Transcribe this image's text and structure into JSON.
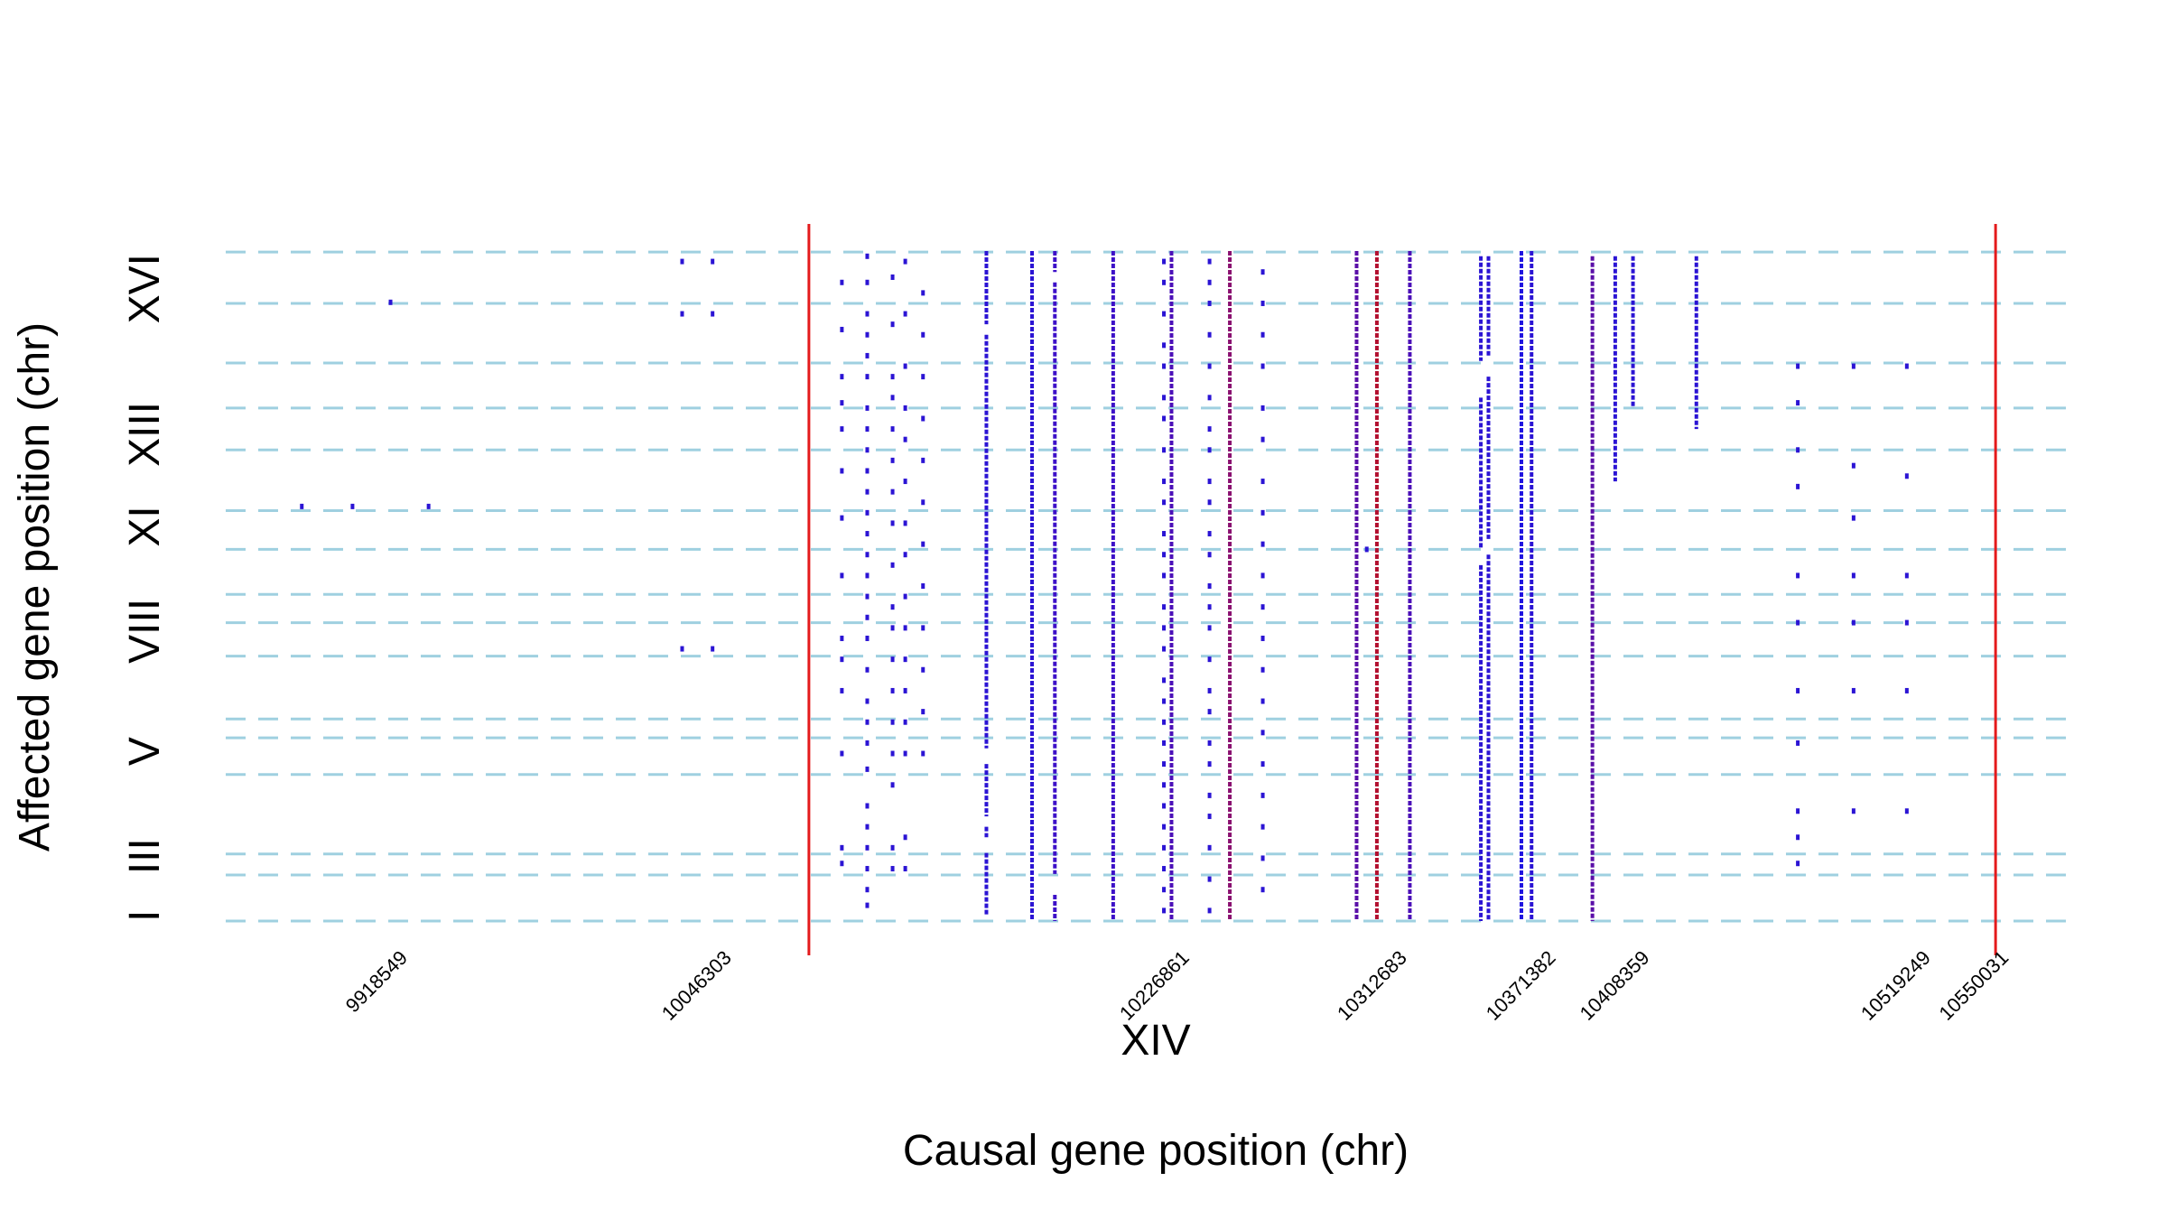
{
  "chart_data": {
    "type": "scatter",
    "xlabel": "Causal gene position (chr)",
    "ylabel": "Affected gene position (chr)",
    "x_chromosome_label": "XIV",
    "xlim": [
      9850000,
      10580000
    ],
    "x_ticks": [
      "9918549",
      "10046303",
      "10226861",
      "10312683",
      "10371382",
      "10408359",
      "10519249",
      "10550031"
    ],
    "y_chromosome_labels": [
      {
        "label": "I",
        "row": 0.5
      },
      {
        "label": "III",
        "row": 6.2
      },
      {
        "label": "V",
        "row": 16.2
      },
      {
        "label": "VIII",
        "row": 27.7
      },
      {
        "label": "XI",
        "row": 37.7
      },
      {
        "label": "XIII",
        "row": 46.5
      },
      {
        "label": "XVI",
        "row": 60.4
      }
    ],
    "y_row_range": [
      0,
      64
    ],
    "chromosome_boundaries": [
      0,
      4.4,
      6.4,
      14,
      17.5,
      19.3,
      25.3,
      28.5,
      31.2,
      35.5,
      39.2,
      45,
      49,
      53.3,
      59,
      63.9
    ],
    "red_vertical_lines": [
      10080000,
      10548000
    ],
    "columns": [
      {
        "x": 10030000,
        "rows": [
          63,
          58,
          26
        ]
      },
      {
        "x": 10042000,
        "rows": [
          63,
          58,
          26
        ]
      },
      {
        "x": 9880000,
        "rows": [
          39.6
        ]
      },
      {
        "x": 9900000,
        "rows": [
          39.6
        ]
      },
      {
        "x": 9915000,
        "rows": [
          59.1
        ]
      },
      {
        "x": 9930000,
        "rows": [
          39.6
        ]
      },
      {
        "x": 10093000,
        "rows": [
          61,
          56.5,
          52,
          49.5,
          47,
          43,
          38.5,
          33,
          27,
          25,
          22,
          16,
          7,
          5.5
        ]
      },
      {
        "x": 10103000,
        "rows": [
          63.5,
          61,
          58,
          56,
          54,
          52,
          49,
          47,
          45,
          43,
          41,
          39,
          37,
          35,
          33,
          31,
          29,
          27,
          24,
          21,
          19,
          17,
          14.5,
          11,
          9,
          7,
          5,
          3,
          1.5
        ]
      },
      {
        "x": 10113000,
        "rows": [
          61.5,
          57,
          52,
          50,
          47,
          44,
          41,
          38,
          34,
          30,
          28,
          25,
          22,
          19,
          16,
          13,
          7,
          5
        ]
      },
      {
        "x": 10118000,
        "rows": [
          63,
          58,
          53,
          49,
          46,
          42,
          38,
          35,
          31,
          28,
          25,
          22,
          19,
          16,
          8,
          5
        ]
      },
      {
        "x": 10125000,
        "rows": [
          60,
          56,
          52,
          48,
          44,
          40,
          36,
          32,
          28,
          24,
          20,
          16
        ]
      },
      {
        "x": 10300000,
        "rows": [
          35.5
        ]
      },
      {
        "x": 10470000,
        "rows": [
          53,
          49.5,
          45,
          41.5,
          33,
          28.5,
          22,
          17,
          10.5,
          8,
          5.5
        ]
      },
      {
        "x": 10492000,
        "rows": [
          53,
          43.5,
          38.5,
          33,
          28.5,
          22,
          10.5
        ]
      },
      {
        "x": 10513000,
        "rows": [
          53,
          42.5,
          33,
          28.5,
          22,
          10.5
        ]
      },
      {
        "x": 10220000,
        "rows": [
          63,
          61,
          58,
          55,
          53,
          50,
          48,
          45,
          42,
          40,
          37,
          35,
          33,
          30,
          28,
          26,
          23,
          21,
          19,
          17,
          15,
          13,
          11,
          9,
          7,
          5,
          3,
          1
        ]
      },
      {
        "x": 10238000,
        "rows": [
          63,
          61,
          59,
          56,
          53,
          50,
          47,
          45,
          42,
          40,
          37,
          35,
          32,
          30,
          28,
          25,
          22,
          20,
          17,
          15,
          12,
          10,
          7,
          4,
          1
        ]
      },
      {
        "x": 10259000,
        "rows": [
          62,
          59,
          56,
          53,
          49,
          46,
          42,
          39,
          36,
          33,
          30,
          27,
          24,
          21,
          18,
          15,
          12,
          9,
          6,
          3
        ]
      }
    ],
    "dense_columns": [
      {
        "x": 10150000,
        "row_start": 0.6,
        "row_end": 64,
        "color": "#2b14d4",
        "gaps": [
          [
            6.5,
            8
          ],
          [
            9,
            10
          ],
          [
            15,
            16.5
          ],
          [
            56,
            57
          ]
        ]
      },
      {
        "x": 10168000,
        "row_start": 0,
        "row_end": 64,
        "color": "#2b14d4",
        "gaps": []
      },
      {
        "x": 10177000,
        "row_start": 0,
        "row_end": 64,
        "color": "#3d10c8",
        "gaps": [
          [
            2.5,
            4.5
          ],
          [
            61,
            62
          ]
        ]
      },
      {
        "x": 10200000,
        "row_start": 0,
        "row_end": 64,
        "color": "#3d10c8",
        "gaps": []
      },
      {
        "x": 10223000,
        "row_start": 0,
        "row_end": 64,
        "color": "#4b0fb8",
        "gaps": []
      },
      {
        "x": 10246000,
        "row_start": 0,
        "row_end": 64,
        "color": "#8a1070",
        "gaps": []
      },
      {
        "x": 10296000,
        "row_start": 0,
        "row_end": 64,
        "color": "#5a0fa8",
        "gaps": []
      },
      {
        "x": 10304000,
        "row_start": 0,
        "row_end": 64,
        "color": "#b3102f",
        "gaps": []
      },
      {
        "x": 10317000,
        "row_start": 0,
        "row_end": 64,
        "color": "#4b0fb8",
        "gaps": []
      },
      {
        "x": 10345000,
        "row_start": 0,
        "row_end": 63.5,
        "color": "#2b14d4",
        "gaps": [
          [
            34,
            35.5
          ],
          [
            50,
            53.5
          ]
        ]
      },
      {
        "x": 10348000,
        "row_start": 0,
        "row_end": 63.5,
        "color": "#2b14d4",
        "gaps": [
          [
            35,
            36.5
          ],
          [
            52,
            54
          ]
        ]
      },
      {
        "x": 10361000,
        "row_start": 0,
        "row_end": 64,
        "color": "#2014e0",
        "gaps": []
      },
      {
        "x": 10365000,
        "row_start": 0,
        "row_end": 64,
        "color": "#2b14d4",
        "gaps": []
      },
      {
        "x": 10389000,
        "row_start": 0,
        "row_end": 63.5,
        "color": "#5a0fa8",
        "gaps": []
      },
      {
        "x": 10398000,
        "row_start": 42,
        "row_end": 63.5,
        "color": "#2b14d4",
        "gaps": []
      },
      {
        "x": 10405000,
        "row_start": 49,
        "row_end": 63.5,
        "color": "#2b14d4",
        "gaps": []
      },
      {
        "x": 10430000,
        "row_start": 47,
        "row_end": 63.5,
        "color": "#2b14d4",
        "gaps": []
      }
    ],
    "grid": false,
    "legend": "none"
  }
}
